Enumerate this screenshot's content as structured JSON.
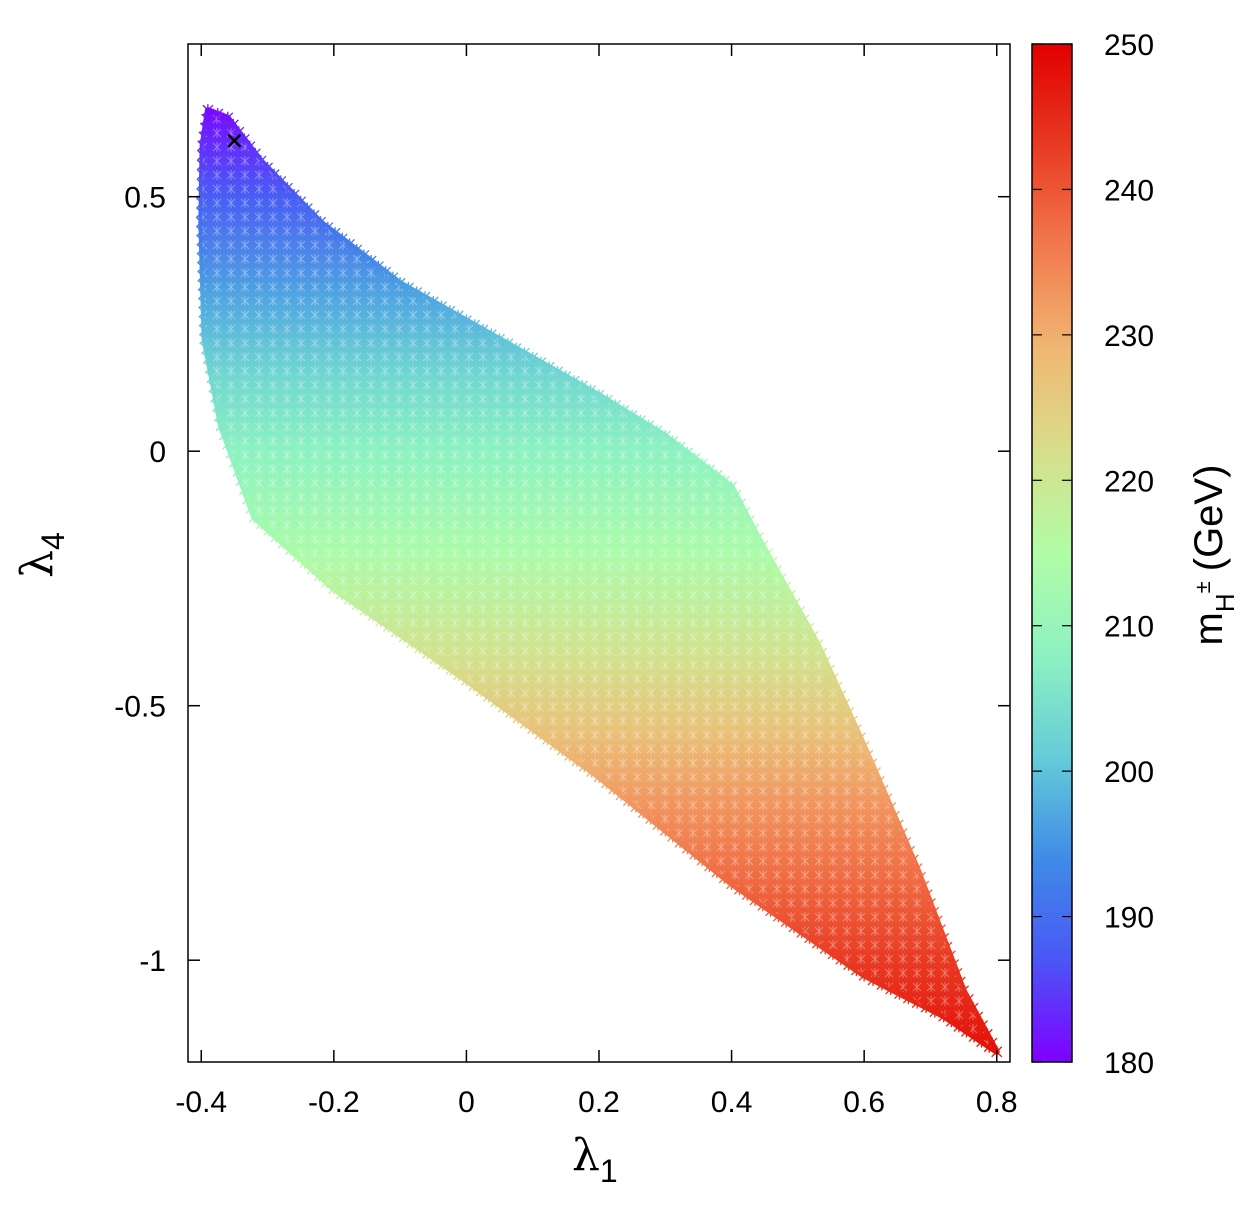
{
  "chart_data": {
    "type": "scatter",
    "title": "",
    "xlabel": "λ",
    "xlabel_sub": "1",
    "ylabel": "λ",
    "ylabel_sub": "4",
    "xlim": [
      -0.42,
      0.82
    ],
    "ylim": [
      -1.2,
      0.8
    ],
    "xticks": [
      -0.4,
      -0.2,
      0,
      0.2,
      0.4,
      0.6,
      0.8
    ],
    "xtick_labels": [
      "-0.4",
      "-0.2",
      "0",
      "0.2",
      "0.4",
      "0.6",
      "0.8"
    ],
    "yticks": [
      0.5,
      0,
      -0.5,
      -1
    ],
    "ytick_labels": [
      "0.5",
      "0",
      "-0.5",
      "-1"
    ],
    "grid": false,
    "marker": "asterisk",
    "region_boundary": [
      {
        "x": -0.39,
        "y": 0.67
      },
      {
        "x": -0.36,
        "y": 0.655
      },
      {
        "x": -0.31,
        "y": 0.57
      },
      {
        "x": -0.22,
        "y": 0.45
      },
      {
        "x": -0.1,
        "y": 0.33
      },
      {
        "x": 0.05,
        "y": 0.22
      },
      {
        "x": 0.2,
        "y": 0.11
      },
      {
        "x": 0.3,
        "y": 0.03
      },
      {
        "x": 0.4,
        "y": -0.07
      },
      {
        "x": 0.44,
        "y": -0.17
      },
      {
        "x": 0.53,
        "y": -0.38
      },
      {
        "x": 0.6,
        "y": -0.58
      },
      {
        "x": 0.68,
        "y": -0.82
      },
      {
        "x": 0.75,
        "y": -1.06
      },
      {
        "x": 0.8,
        "y": -1.18
      },
      {
        "x": 0.72,
        "y": -1.11
      },
      {
        "x": 0.6,
        "y": -1.03
      },
      {
        "x": 0.4,
        "y": -0.85
      },
      {
        "x": 0.2,
        "y": -0.64
      },
      {
        "x": 0.0,
        "y": -0.45
      },
      {
        "x": -0.2,
        "y": -0.27
      },
      {
        "x": -0.32,
        "y": -0.13
      },
      {
        "x": -0.37,
        "y": 0.05
      },
      {
        "x": -0.395,
        "y": 0.22
      },
      {
        "x": -0.4,
        "y": 0.45
      },
      {
        "x": -0.398,
        "y": 0.6
      }
    ],
    "color_variable": "y",
    "color_mapping": [
      {
        "y": 0.67,
        "value": 181
      },
      {
        "y": 0.5,
        "value": 188
      },
      {
        "y": 0.3,
        "value": 197
      },
      {
        "y": 0.15,
        "value": 203
      },
      {
        "y": 0.0,
        "value": 208
      },
      {
        "y": -0.2,
        "value": 214
      },
      {
        "y": -0.4,
        "value": 221
      },
      {
        "y": -0.55,
        "value": 227
      },
      {
        "y": -0.7,
        "value": 233
      },
      {
        "y": -0.85,
        "value": 238
      },
      {
        "y": -1.0,
        "value": 243
      },
      {
        "y": -1.18,
        "value": 248
      }
    ],
    "highlight_point": {
      "x": -0.35,
      "y": 0.61,
      "marker": "x"
    },
    "colorbar": {
      "label": "m",
      "label_sub": "H",
      "label_sup": "±",
      "label_unit": "(GeV)",
      "range": [
        180,
        250
      ],
      "ticks": [
        180,
        190,
        200,
        210,
        220,
        230,
        240,
        250
      ],
      "tick_labels": [
        "180",
        "190",
        "200",
        "210",
        "220",
        "230",
        "240",
        "250"
      ],
      "palette": [
        "#7f00ff",
        "#4a56f6",
        "#3f8ce6",
        "#66ccd8",
        "#8df2c1",
        "#b1fca6",
        "#d8de8a",
        "#f0b774",
        "#f27a4e",
        "#e83a22",
        "#e10000"
      ]
    }
  }
}
